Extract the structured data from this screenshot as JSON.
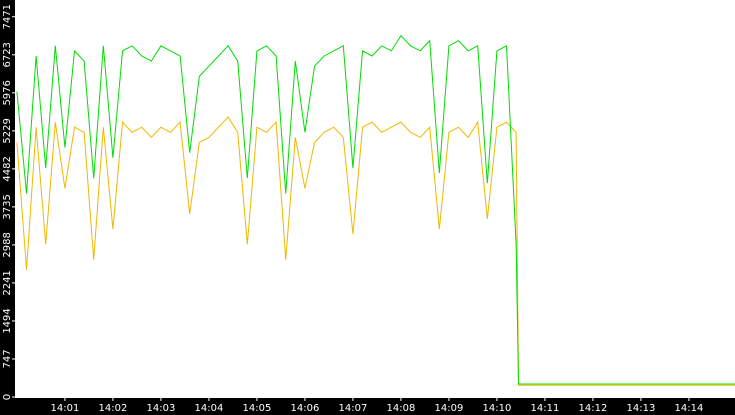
{
  "chart_data": {
    "type": "line",
    "x": [
      0,
      0.2,
      0.4,
      0.6,
      0.8,
      1.0,
      1.2,
      1.4,
      1.6,
      1.8,
      2.0,
      2.2,
      2.4,
      2.6,
      2.8,
      3.0,
      3.2,
      3.4,
      3.6,
      3.8,
      4.0,
      4.2,
      4.4,
      4.6,
      4.8,
      5.0,
      5.2,
      5.4,
      5.6,
      5.8,
      6.0,
      6.2,
      6.4,
      6.6,
      6.8,
      7.0,
      7.2,
      7.4,
      7.6,
      7.8,
      8.0,
      8.2,
      8.4,
      8.6,
      8.8,
      9.0,
      9.2,
      9.4,
      9.6,
      9.8,
      10.0,
      10.2,
      10.4,
      10.45,
      14.96
    ],
    "series": [
      {
        "color": "#00dd00",
        "values": [
          6000,
          4000,
          6700,
          4500,
          6900,
          4900,
          6800,
          6600,
          4300,
          6900,
          4700,
          6800,
          6900,
          6700,
          6600,
          6900,
          6800,
          6700,
          4800,
          6300,
          6500,
          6700,
          6900,
          6600,
          4300,
          6800,
          6900,
          6700,
          4000,
          6600,
          5200,
          6500,
          6700,
          6800,
          6900,
          4500,
          6800,
          6700,
          6900,
          6800,
          7100,
          6900,
          6800,
          7000,
          4400,
          6900,
          7000,
          6800,
          6900,
          4200,
          6800,
          6900,
          3000,
          255,
          255
        ]
      },
      {
        "color": "#f0b800",
        "values": [
          5000,
          2500,
          5300,
          3000,
          5400,
          4100,
          5300,
          5200,
          2700,
          5300,
          3300,
          5400,
          5200,
          5300,
          5100,
          5300,
          5200,
          5400,
          3600,
          5000,
          5100,
          5300,
          5500,
          5200,
          3000,
          5300,
          5200,
          5400,
          2700,
          5100,
          4100,
          5000,
          5200,
          5300,
          5100,
          3200,
          5300,
          5400,
          5200,
          5300,
          5400,
          5200,
          5100,
          5300,
          3300,
          5200,
          5300,
          5100,
          5400,
          3500,
          5300,
          5400,
          5200,
          230,
          230
        ]
      }
    ],
    "xlim": [
      -0.04,
      14.96
    ],
    "ylim": [
      0,
      7800
    ],
    "yticks": [
      0,
      747,
      1494,
      2241,
      2988,
      3735,
      4482,
      5229,
      5976,
      6723,
      7471
    ],
    "xticks": [
      {
        "value": 1,
        "label": "14:01"
      },
      {
        "value": 2,
        "label": "14:02"
      },
      {
        "value": 3,
        "label": "14:03"
      },
      {
        "value": 4,
        "label": "14:04"
      },
      {
        "value": 5,
        "label": "14:05"
      },
      {
        "value": 6,
        "label": "14:06"
      },
      {
        "value": 7,
        "label": "14:07"
      },
      {
        "value": 8,
        "label": "14:08"
      },
      {
        "value": 9,
        "label": "14:09"
      },
      {
        "value": 10,
        "label": "14:10"
      },
      {
        "value": 11,
        "label": "14:11"
      },
      {
        "value": 12,
        "label": "14:12"
      },
      {
        "value": 13,
        "label": "14:13"
      },
      {
        "value": 14,
        "label": "14:14"
      }
    ],
    "grid": false
  }
}
